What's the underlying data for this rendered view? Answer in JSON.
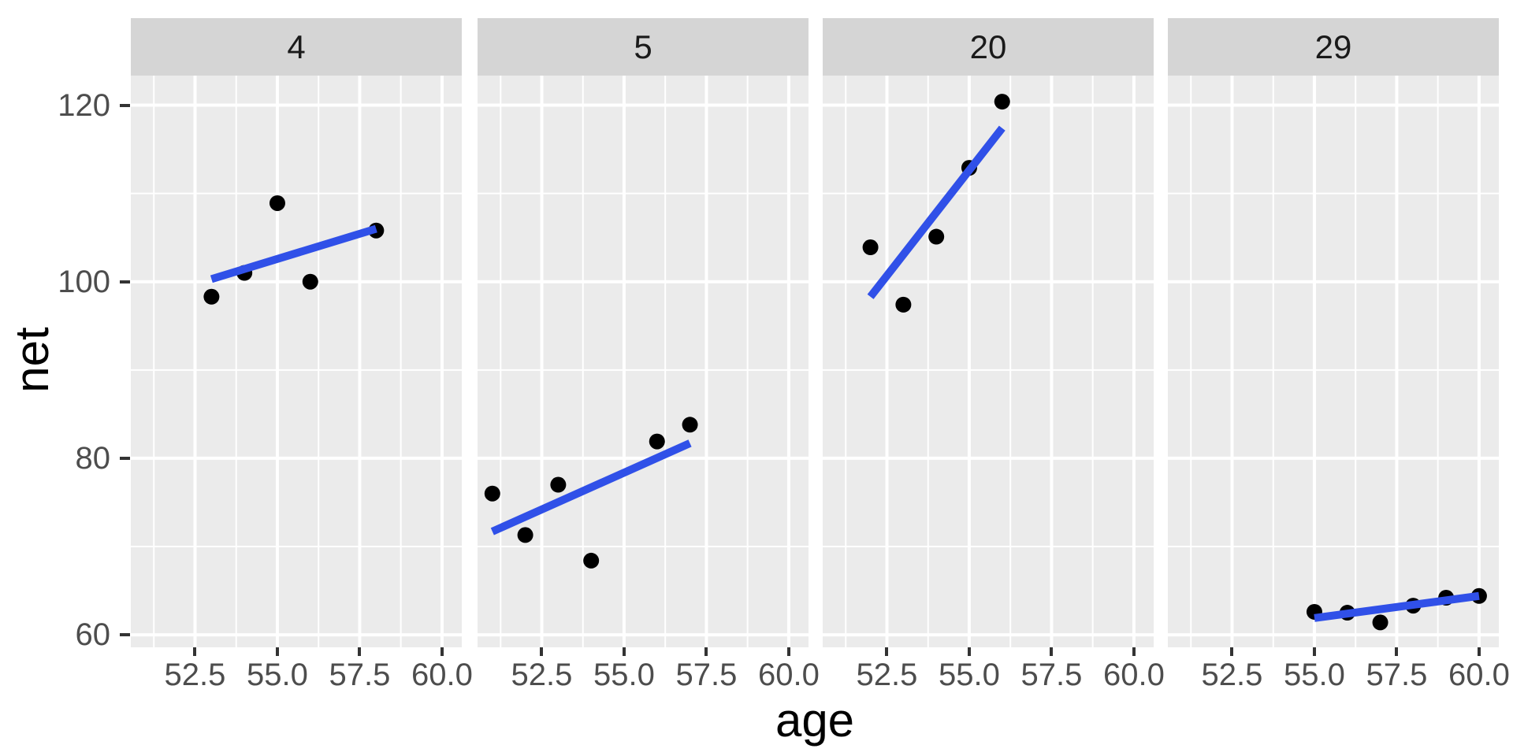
{
  "chart_data": {
    "type": "scatter",
    "title": "",
    "xlabel": "age",
    "ylabel": "net",
    "facet_labels": [
      "4",
      "5",
      "20",
      "29"
    ],
    "x_domain": [
      50.55,
      60.6
    ],
    "y_domain": [
      58.58,
      123.35
    ],
    "x_major_ticks": [
      52.5,
      55.0,
      57.5,
      60.0
    ],
    "x_tick_labels": [
      "52.5",
      "55.0",
      "57.5",
      "60.0"
    ],
    "x_minor_ticks": [
      51.25,
      53.75,
      56.25,
      58.75
    ],
    "y_major_ticks": [
      60,
      80,
      100,
      120
    ],
    "y_tick_labels": [
      "60",
      "80",
      "100",
      "120"
    ],
    "y_minor_ticks": [
      70,
      90,
      110
    ],
    "grid": true,
    "legend_position": "none",
    "facets": [
      {
        "label": "4",
        "points": [
          [
            53,
            98.3
          ],
          [
            54,
            101.0
          ],
          [
            55,
            108.9
          ],
          [
            56,
            100.0
          ],
          [
            58,
            105.8
          ]
        ],
        "trend_line": {
          "x": [
            53,
            58
          ],
          "y": [
            100.3,
            106.0
          ]
        }
      },
      {
        "label": "5",
        "points": [
          [
            51,
            76.0
          ],
          [
            52,
            71.3
          ],
          [
            53,
            77.0
          ],
          [
            54,
            68.4
          ],
          [
            56,
            81.9
          ],
          [
            57,
            83.8
          ]
        ],
        "trend_line": {
          "x": [
            51,
            57
          ],
          "y": [
            71.7,
            81.7
          ]
        }
      },
      {
        "label": "20",
        "points": [
          [
            52,
            103.9
          ],
          [
            53,
            97.4
          ],
          [
            54,
            105.1
          ],
          [
            55,
            112.9
          ],
          [
            56,
            120.4
          ]
        ],
        "trend_line": {
          "x": [
            52,
            56
          ],
          "y": [
            98.3,
            117.4
          ]
        }
      },
      {
        "label": "29",
        "points": [
          [
            55,
            62.6
          ],
          [
            56,
            62.5
          ],
          [
            57,
            61.4
          ],
          [
            58,
            63.3
          ],
          [
            59,
            64.2
          ],
          [
            60,
            64.4
          ]
        ],
        "trend_line": {
          "x": [
            55,
            60
          ],
          "y": [
            61.9,
            64.4
          ]
        }
      }
    ],
    "colors": {
      "figure_background": "#FFFFFF",
      "panel_background": "#EBEBEB",
      "strip_background": "#D5D5D5",
      "gridline": "#FFFFFF",
      "point": "#000000",
      "smooth_line": "#3050E8",
      "axis_text": "#4D4D4D",
      "strip_text": "#1A1A1A",
      "axis_title": "#000000",
      "tick_mark": "#333333"
    }
  }
}
